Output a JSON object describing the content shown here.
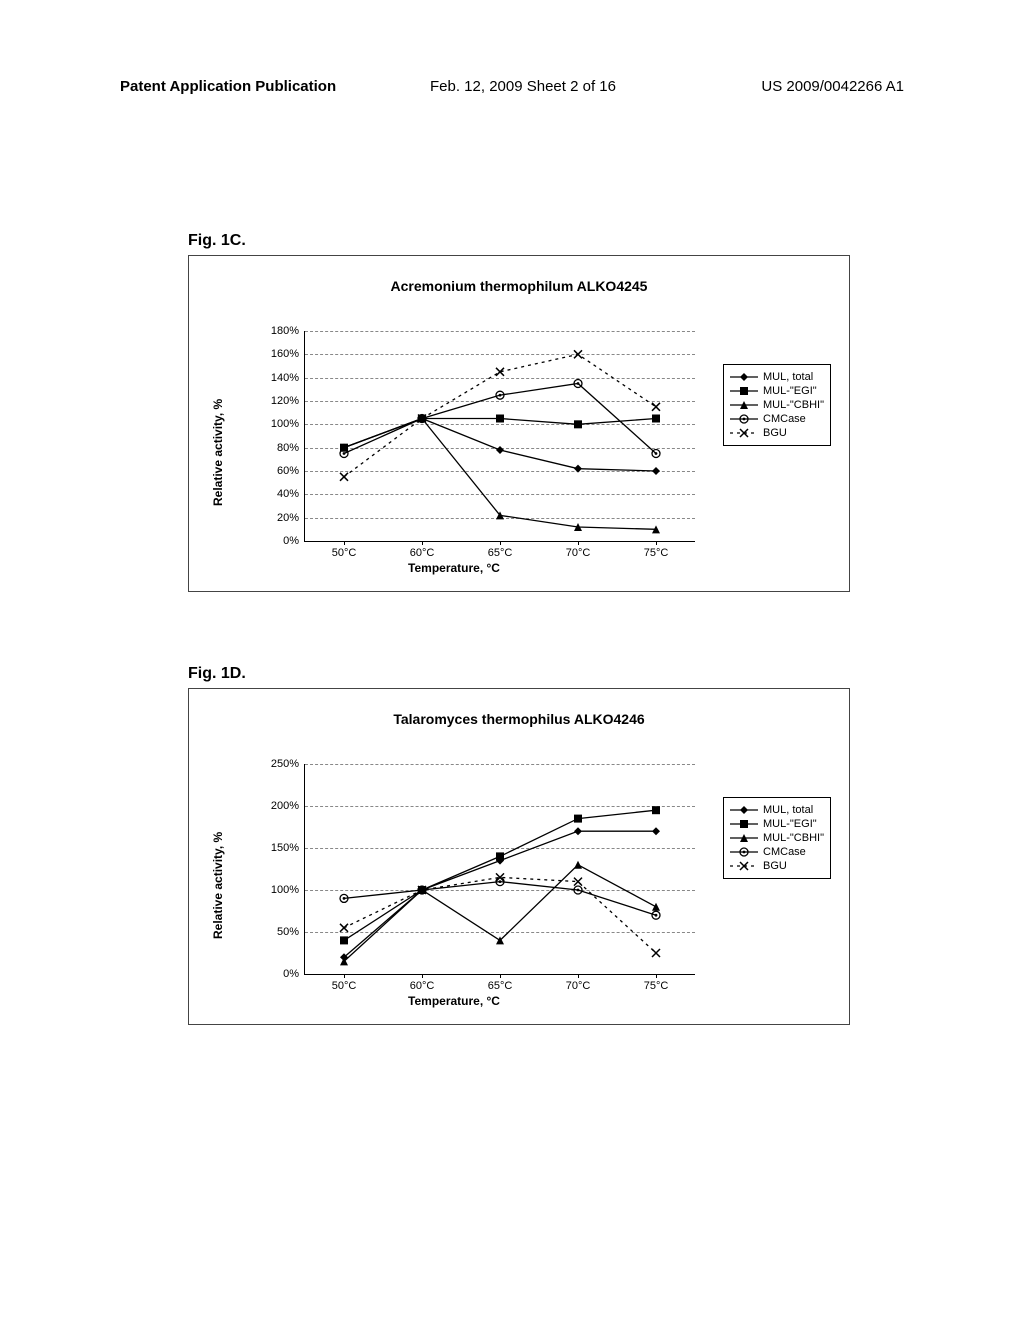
{
  "header": {
    "left": "Patent Application Publication",
    "center": "Feb. 12, 2009  Sheet 2 of 16",
    "right": "US 2009/0042266 A1"
  },
  "legend_items": [
    {
      "label": "MUL, total",
      "marker": "diamond",
      "dash": "solid"
    },
    {
      "label": "MUL-\"EGI\"",
      "marker": "square",
      "dash": "solid"
    },
    {
      "label": "MUL-\"CBHI\"",
      "marker": "triangle",
      "dash": "solid"
    },
    {
      "label": "CMCase",
      "marker": "circle",
      "dash": "solid"
    },
    {
      "label": "BGU",
      "marker": "x",
      "dash": "dotted"
    }
  ],
  "fig1c": {
    "label": "Fig. 1C.",
    "title": "Acremonium thermophilum ALKO4245",
    "ylabel": "Relative activity, %",
    "xlabel": "Temperature, °C",
    "x_categories": [
      "50°C",
      "60°C",
      "65°C",
      "70°C",
      "75°C"
    ],
    "y_ticks": [
      "0%",
      "20%",
      "40%",
      "60%",
      "80%",
      "100%",
      "120%",
      "140%",
      "160%",
      "180%"
    ],
    "y_min": 0,
    "y_max": 180,
    "series": {
      "mul_total": {
        "marker": "diamond",
        "dash": "solid",
        "values": [
          80,
          105,
          78,
          62,
          60
        ]
      },
      "mul_egi": {
        "marker": "square",
        "dash": "solid",
        "values": [
          80,
          105,
          105,
          100,
          105
        ]
      },
      "mul_cbhi": {
        "marker": "triangle",
        "dash": "solid",
        "values": [
          80,
          105,
          22,
          12,
          10
        ]
      },
      "cmcase": {
        "marker": "circle",
        "dash": "solid",
        "values": [
          75,
          105,
          125,
          135,
          75
        ]
      },
      "bgu": {
        "marker": "x",
        "dash": "dotted",
        "values": [
          55,
          105,
          145,
          160,
          115
        ]
      }
    }
  },
  "fig1d": {
    "label": "Fig. 1D.",
    "title": "Talaromyces thermophilus ALKO4246",
    "ylabel": "Relative activity, %",
    "xlabel": "Temperature, °C",
    "x_categories": [
      "50°C",
      "60°C",
      "65°C",
      "70°C",
      "75°C"
    ],
    "y_ticks": [
      "0%",
      "50%",
      "100%",
      "150%",
      "200%",
      "250%"
    ],
    "y_min": 0,
    "y_max": 250,
    "series": {
      "mul_total": {
        "marker": "diamond",
        "dash": "solid",
        "values": [
          20,
          100,
          135,
          170,
          170
        ]
      },
      "mul_egi": {
        "marker": "square",
        "dash": "solid",
        "values": [
          40,
          100,
          140,
          185,
          195
        ]
      },
      "mul_cbhi": {
        "marker": "triangle",
        "dash": "solid",
        "values": [
          15,
          100,
          40,
          130,
          80
        ]
      },
      "cmcase": {
        "marker": "circle",
        "dash": "solid",
        "values": [
          90,
          100,
          110,
          100,
          70
        ]
      },
      "bgu": {
        "marker": "x",
        "dash": "dotted",
        "values": [
          55,
          100,
          115,
          110,
          25
        ]
      }
    }
  },
  "style": {
    "line_color": "#000000",
    "grid_color": "#888888",
    "dot_line_dash": "3,4",
    "line_width": 1.3,
    "marker_size": 8
  }
}
